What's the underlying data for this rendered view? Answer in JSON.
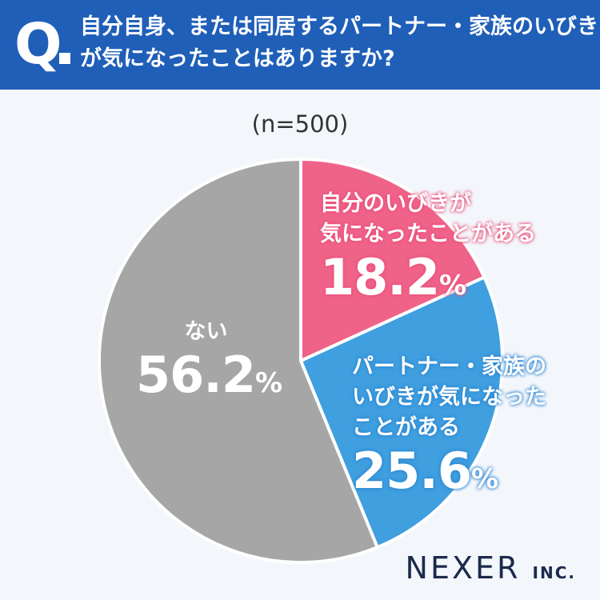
{
  "header": {
    "q_label": "Q",
    "question_lines": [
      "自分自身、または同居するパートナー・家族のいびき",
      "が気になったことはありますか?"
    ]
  },
  "sample_label": "(n=500)",
  "brand": {
    "name": "NEXER",
    "suffix": "INC."
  },
  "colors": {
    "header": "#1f5fb8",
    "pink": "#f06389",
    "blue": "#3f9fdf",
    "gray": "#a6a6a6"
  },
  "chart_data": {
    "type": "pie",
    "title": "自分自身、または同居するパートナー・家族のいびきが気になったことはありますか?",
    "slices": [
      {
        "label_lines": [
          "自分のいびきが",
          "気になったことがある"
        ],
        "value": 18.2,
        "color": "#f06389"
      },
      {
        "label_lines": [
          "パートナー・家族の",
          "いびきが気になった",
          "ことがある"
        ],
        "value": 25.6,
        "color": "#3f9fdf"
      },
      {
        "label_lines": [
          "ない"
        ],
        "value": 56.2,
        "color": "#a6a6a6"
      }
    ],
    "value_suffix": "%"
  }
}
